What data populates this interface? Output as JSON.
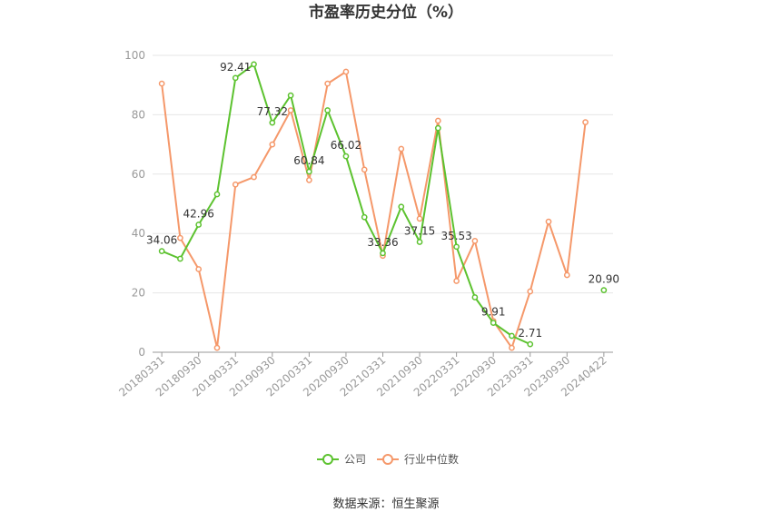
{
  "chart_data": {
    "type": "line",
    "title": "市盈率历史分位（%）",
    "xlabel": "",
    "ylabel": "",
    "ylim": [
      0,
      100
    ],
    "yticks": [
      0,
      20,
      40,
      60,
      80,
      100
    ],
    "grid": true,
    "legend_position": "bottom",
    "categories": [
      "20180331",
      "20180630",
      "20180930",
      "20181231",
      "20190331",
      "20190630",
      "20190930",
      "20191231",
      "20200331",
      "20200630",
      "20200930",
      "20201231",
      "20210331",
      "20210630",
      "20210930",
      "20211231",
      "20220331",
      "20220630",
      "20220930",
      "20221231",
      "20230331",
      "20230630",
      "20230930",
      "20231231",
      "20240422"
    ],
    "x_tick_labels": [
      "20180331",
      "20180930",
      "20190331",
      "20190930",
      "20200331",
      "20200930",
      "20210331",
      "20210930",
      "20220331",
      "20220930",
      "20230331",
      "20230930",
      "20240422"
    ],
    "series": [
      {
        "name": "公司",
        "color": "#5cc22f",
        "values": [
          34.06,
          31.5,
          42.96,
          53.2,
          92.41,
          97.0,
          77.32,
          86.5,
          60.84,
          81.5,
          66.02,
          45.5,
          33.36,
          49.0,
          37.15,
          75.5,
          35.53,
          18.5,
          9.91,
          5.5,
          2.71,
          null,
          null,
          null,
          20.9
        ],
        "labels": [
          {
            "index": 0,
            "text": "34.06"
          },
          {
            "index": 2,
            "text": "42.96"
          },
          {
            "index": 4,
            "text": "92.41"
          },
          {
            "index": 6,
            "text": "77.32"
          },
          {
            "index": 8,
            "text": "60.84"
          },
          {
            "index": 10,
            "text": "66.02"
          },
          {
            "index": 12,
            "text": "33.36"
          },
          {
            "index": 14,
            "text": "37.15"
          },
          {
            "index": 16,
            "text": "35.53"
          },
          {
            "index": 18,
            "text": "9.91"
          },
          {
            "index": 20,
            "text": "2.71"
          },
          {
            "index": 24,
            "text": "20.90"
          }
        ]
      },
      {
        "name": "行业中位数",
        "color": "#f5986a",
        "values": [
          90.5,
          38.5,
          28.0,
          1.5,
          56.5,
          59.0,
          70.0,
          81.5,
          58.0,
          90.5,
          94.5,
          61.5,
          32.5,
          68.5,
          45.0,
          78.0,
          24.0,
          37.5,
          10.5,
          1.5,
          20.5,
          44.0,
          26.0,
          77.5,
          null
        ]
      }
    ]
  },
  "legend": {
    "company": "公司",
    "industry": "行业中位数"
  },
  "source": "数据来源：恒生聚源"
}
